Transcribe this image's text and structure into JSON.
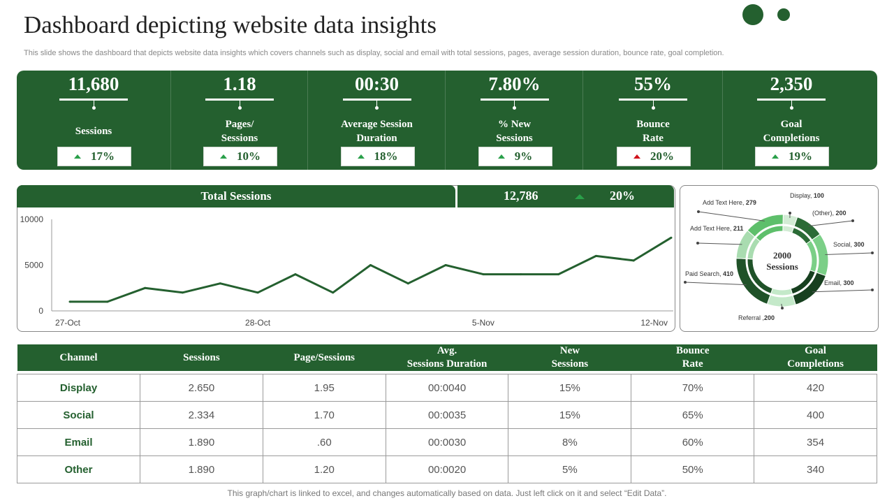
{
  "header": {
    "title": "Dashboard depicting website data insights",
    "subtitle": "This slide shows the dashboard that depicts website data insights which covers channels such as display, social and email with total sessions, pages, average session duration, bounce rate, goal completion."
  },
  "kpis": [
    {
      "value": "11,680",
      "label": "Sessions",
      "change": "17%",
      "trend": "up",
      "trend_color": "#2aa04a"
    },
    {
      "value": "1.18",
      "label": "Pages/\nSessions",
      "change": "10%",
      "trend": "up",
      "trend_color": "#2aa04a"
    },
    {
      "value": "00:30",
      "label": "Average Session\nDuration",
      "change": "18%",
      "trend": "up",
      "trend_color": "#2aa04a"
    },
    {
      "value": "7.80%",
      "label": "% New\nSessions",
      "change": "9%",
      "trend": "up",
      "trend_color": "#2aa04a"
    },
    {
      "value": "55%",
      "label": "Bounce\nRate",
      "change": "20%",
      "trend": "up",
      "trend_color": "#d0121b"
    },
    {
      "value": "2,350",
      "label": "Goal\nCompletions",
      "change": "19%",
      "trend": "up",
      "trend_color": "#2aa04a"
    }
  ],
  "total_sessions": {
    "label": "Total Sessions",
    "total": "12,786",
    "change": "20%"
  },
  "chart_data": [
    {
      "type": "line",
      "title": "Total Sessions",
      "x": [
        0,
        1,
        2,
        3,
        4,
        5,
        6,
        7,
        8,
        9,
        10,
        11,
        12,
        13,
        14,
        15,
        16
      ],
      "xtick_labels": [
        "27-Oct",
        "28-Oct",
        "5-Nov",
        "12-Nov"
      ],
      "xtick_positions": [
        0,
        5,
        11,
        16
      ],
      "series": [
        {
          "name": "Sessions",
          "color": "#24602f",
          "values": [
            1000,
            1000,
            2500,
            2000,
            3000,
            2000,
            4000,
            2000,
            5000,
            3000,
            5000,
            4000,
            4000,
            4000,
            6000,
            5500,
            8000
          ]
        }
      ],
      "yticks": [
        0,
        5000,
        10000
      ],
      "ylim": [
        0,
        10000
      ],
      "xlabel": "",
      "ylabel": ""
    },
    {
      "type": "pie",
      "title": "2000 Sessions",
      "center_label": [
        "2000",
        "Sessions"
      ],
      "slices": [
        {
          "name": "Display",
          "value": 100,
          "color": "#d3ecd5"
        },
        {
          "name": "(Other)",
          "value": 200,
          "color": "#2b6b36"
        },
        {
          "name": "Social",
          "value": 300,
          "color": "#7bcf87"
        },
        {
          "name": "Email",
          "value": 300,
          "color": "#17401f"
        },
        {
          "name": "Referral",
          "value": 200,
          "color": "#c4e9c9"
        },
        {
          "name": "Paid Search",
          "value": 410,
          "color": "#1f5228"
        },
        {
          "name": "Add Text Here",
          "value": 211,
          "color": "#a9dcb0"
        },
        {
          "name": "Add Text Here",
          "value": 279,
          "color": "#5ebf6b"
        }
      ]
    }
  ],
  "table": {
    "headers": [
      "Channel",
      "Sessions",
      "Page/Sessions",
      "Avg.\nSessions Duration",
      "New\nSessions",
      "Bounce\nRate",
      "Goal\nCompletions"
    ],
    "rows": [
      [
        "Display",
        "2.650",
        "1.95",
        "00:0040",
        "15%",
        "70%",
        "420"
      ],
      [
        "Social",
        "2.334",
        "1.70",
        "00:0035",
        "15%",
        "65%",
        "400"
      ],
      [
        "Email",
        "1.890",
        ".60",
        "00:0030",
        "8%",
        "60%",
        "354"
      ],
      [
        "Other",
        "1.890",
        "1.20",
        "00:0020",
        "5%",
        "50%",
        "340"
      ]
    ]
  },
  "footer": "This graph/chart is linked to excel,  and changes automatically based on data. Just left click on it and select “Edit Data”.",
  "colors": {
    "brand": "#24602f",
    "up": "#2aa04a",
    "down": "#d0121b"
  }
}
